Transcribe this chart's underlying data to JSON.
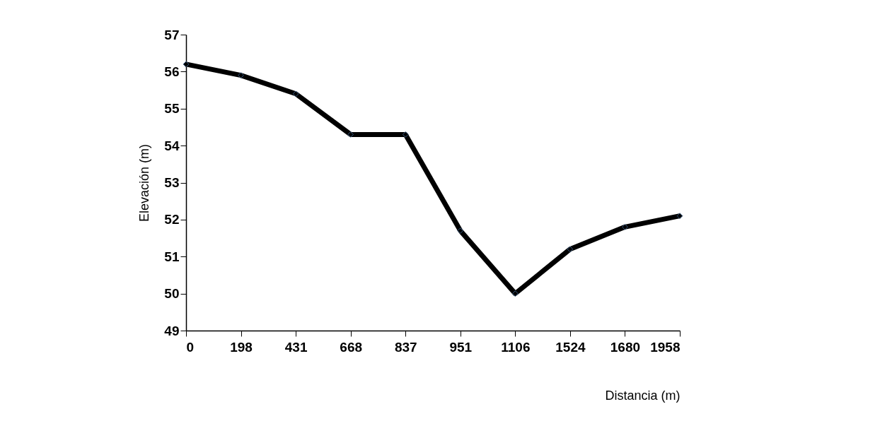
{
  "chart_data": {
    "type": "line",
    "xlabel": "Distancia (m)",
    "ylabel": "Elevación (m)",
    "categories": [
      "0",
      "198",
      "431",
      "668",
      "837",
      "951",
      "1106",
      "1524",
      "1680",
      "1958"
    ],
    "series": [
      {
        "color": "#000000",
        "values": [
          56.2,
          55.9,
          55.4,
          54.3,
          54.3,
          51.7,
          50.0,
          51.2,
          51.8,
          52.1
        ]
      }
    ],
    "ylim": [
      49,
      57
    ],
    "yticks": [
      49,
      50,
      51,
      52,
      53,
      54,
      55,
      56,
      57
    ],
    "grid": false,
    "legend": false,
    "marker": "diamond",
    "line_style": "solid"
  }
}
